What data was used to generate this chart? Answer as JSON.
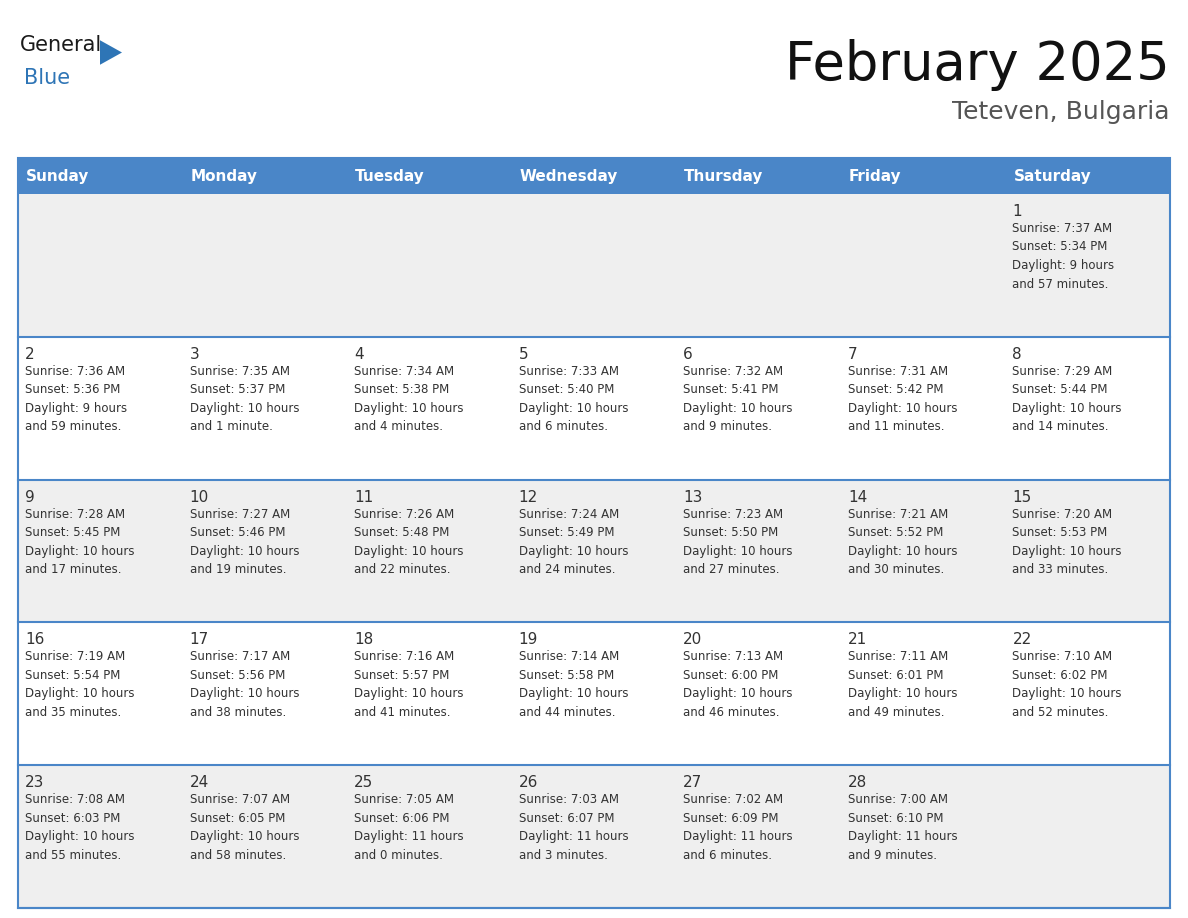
{
  "title": "February 2025",
  "subtitle": "Teteven, Bulgaria",
  "header_color": "#4a86c8",
  "header_text_color": "#ffffff",
  "day_names": [
    "Sunday",
    "Monday",
    "Tuesday",
    "Wednesday",
    "Thursday",
    "Friday",
    "Saturday"
  ],
  "background_color": "#ffffff",
  "cell_bg_light": "#efefef",
  "cell_bg_white": "#ffffff",
  "border_color": "#4a86c8",
  "text_color": "#333333",
  "calendar_data": [
    [
      {
        "day": null,
        "info": ""
      },
      {
        "day": null,
        "info": ""
      },
      {
        "day": null,
        "info": ""
      },
      {
        "day": null,
        "info": ""
      },
      {
        "day": null,
        "info": ""
      },
      {
        "day": null,
        "info": ""
      },
      {
        "day": 1,
        "info": "Sunrise: 7:37 AM\nSunset: 5:34 PM\nDaylight: 9 hours\nand 57 minutes."
      }
    ],
    [
      {
        "day": 2,
        "info": "Sunrise: 7:36 AM\nSunset: 5:36 PM\nDaylight: 9 hours\nand 59 minutes."
      },
      {
        "day": 3,
        "info": "Sunrise: 7:35 AM\nSunset: 5:37 PM\nDaylight: 10 hours\nand 1 minute."
      },
      {
        "day": 4,
        "info": "Sunrise: 7:34 AM\nSunset: 5:38 PM\nDaylight: 10 hours\nand 4 minutes."
      },
      {
        "day": 5,
        "info": "Sunrise: 7:33 AM\nSunset: 5:40 PM\nDaylight: 10 hours\nand 6 minutes."
      },
      {
        "day": 6,
        "info": "Sunrise: 7:32 AM\nSunset: 5:41 PM\nDaylight: 10 hours\nand 9 minutes."
      },
      {
        "day": 7,
        "info": "Sunrise: 7:31 AM\nSunset: 5:42 PM\nDaylight: 10 hours\nand 11 minutes."
      },
      {
        "day": 8,
        "info": "Sunrise: 7:29 AM\nSunset: 5:44 PM\nDaylight: 10 hours\nand 14 minutes."
      }
    ],
    [
      {
        "day": 9,
        "info": "Sunrise: 7:28 AM\nSunset: 5:45 PM\nDaylight: 10 hours\nand 17 minutes."
      },
      {
        "day": 10,
        "info": "Sunrise: 7:27 AM\nSunset: 5:46 PM\nDaylight: 10 hours\nand 19 minutes."
      },
      {
        "day": 11,
        "info": "Sunrise: 7:26 AM\nSunset: 5:48 PM\nDaylight: 10 hours\nand 22 minutes."
      },
      {
        "day": 12,
        "info": "Sunrise: 7:24 AM\nSunset: 5:49 PM\nDaylight: 10 hours\nand 24 minutes."
      },
      {
        "day": 13,
        "info": "Sunrise: 7:23 AM\nSunset: 5:50 PM\nDaylight: 10 hours\nand 27 minutes."
      },
      {
        "day": 14,
        "info": "Sunrise: 7:21 AM\nSunset: 5:52 PM\nDaylight: 10 hours\nand 30 minutes."
      },
      {
        "day": 15,
        "info": "Sunrise: 7:20 AM\nSunset: 5:53 PM\nDaylight: 10 hours\nand 33 minutes."
      }
    ],
    [
      {
        "day": 16,
        "info": "Sunrise: 7:19 AM\nSunset: 5:54 PM\nDaylight: 10 hours\nand 35 minutes."
      },
      {
        "day": 17,
        "info": "Sunrise: 7:17 AM\nSunset: 5:56 PM\nDaylight: 10 hours\nand 38 minutes."
      },
      {
        "day": 18,
        "info": "Sunrise: 7:16 AM\nSunset: 5:57 PM\nDaylight: 10 hours\nand 41 minutes."
      },
      {
        "day": 19,
        "info": "Sunrise: 7:14 AM\nSunset: 5:58 PM\nDaylight: 10 hours\nand 44 minutes."
      },
      {
        "day": 20,
        "info": "Sunrise: 7:13 AM\nSunset: 6:00 PM\nDaylight: 10 hours\nand 46 minutes."
      },
      {
        "day": 21,
        "info": "Sunrise: 7:11 AM\nSunset: 6:01 PM\nDaylight: 10 hours\nand 49 minutes."
      },
      {
        "day": 22,
        "info": "Sunrise: 7:10 AM\nSunset: 6:02 PM\nDaylight: 10 hours\nand 52 minutes."
      }
    ],
    [
      {
        "day": 23,
        "info": "Sunrise: 7:08 AM\nSunset: 6:03 PM\nDaylight: 10 hours\nand 55 minutes."
      },
      {
        "day": 24,
        "info": "Sunrise: 7:07 AM\nSunset: 6:05 PM\nDaylight: 10 hours\nand 58 minutes."
      },
      {
        "day": 25,
        "info": "Sunrise: 7:05 AM\nSunset: 6:06 PM\nDaylight: 11 hours\nand 0 minutes."
      },
      {
        "day": 26,
        "info": "Sunrise: 7:03 AM\nSunset: 6:07 PM\nDaylight: 11 hours\nand 3 minutes."
      },
      {
        "day": 27,
        "info": "Sunrise: 7:02 AM\nSunset: 6:09 PM\nDaylight: 11 hours\nand 6 minutes."
      },
      {
        "day": 28,
        "info": "Sunrise: 7:00 AM\nSunset: 6:10 PM\nDaylight: 11 hours\nand 9 minutes."
      },
      {
        "day": null,
        "info": ""
      }
    ]
  ],
  "logo_general_color": "#1a1a1a",
  "logo_blue_color": "#2e75b6",
  "logo_triangle_color": "#2e75b6",
  "title_fontsize": 38,
  "subtitle_fontsize": 18,
  "header_fontsize": 11,
  "day_number_fontsize": 11,
  "info_fontsize": 8.5
}
